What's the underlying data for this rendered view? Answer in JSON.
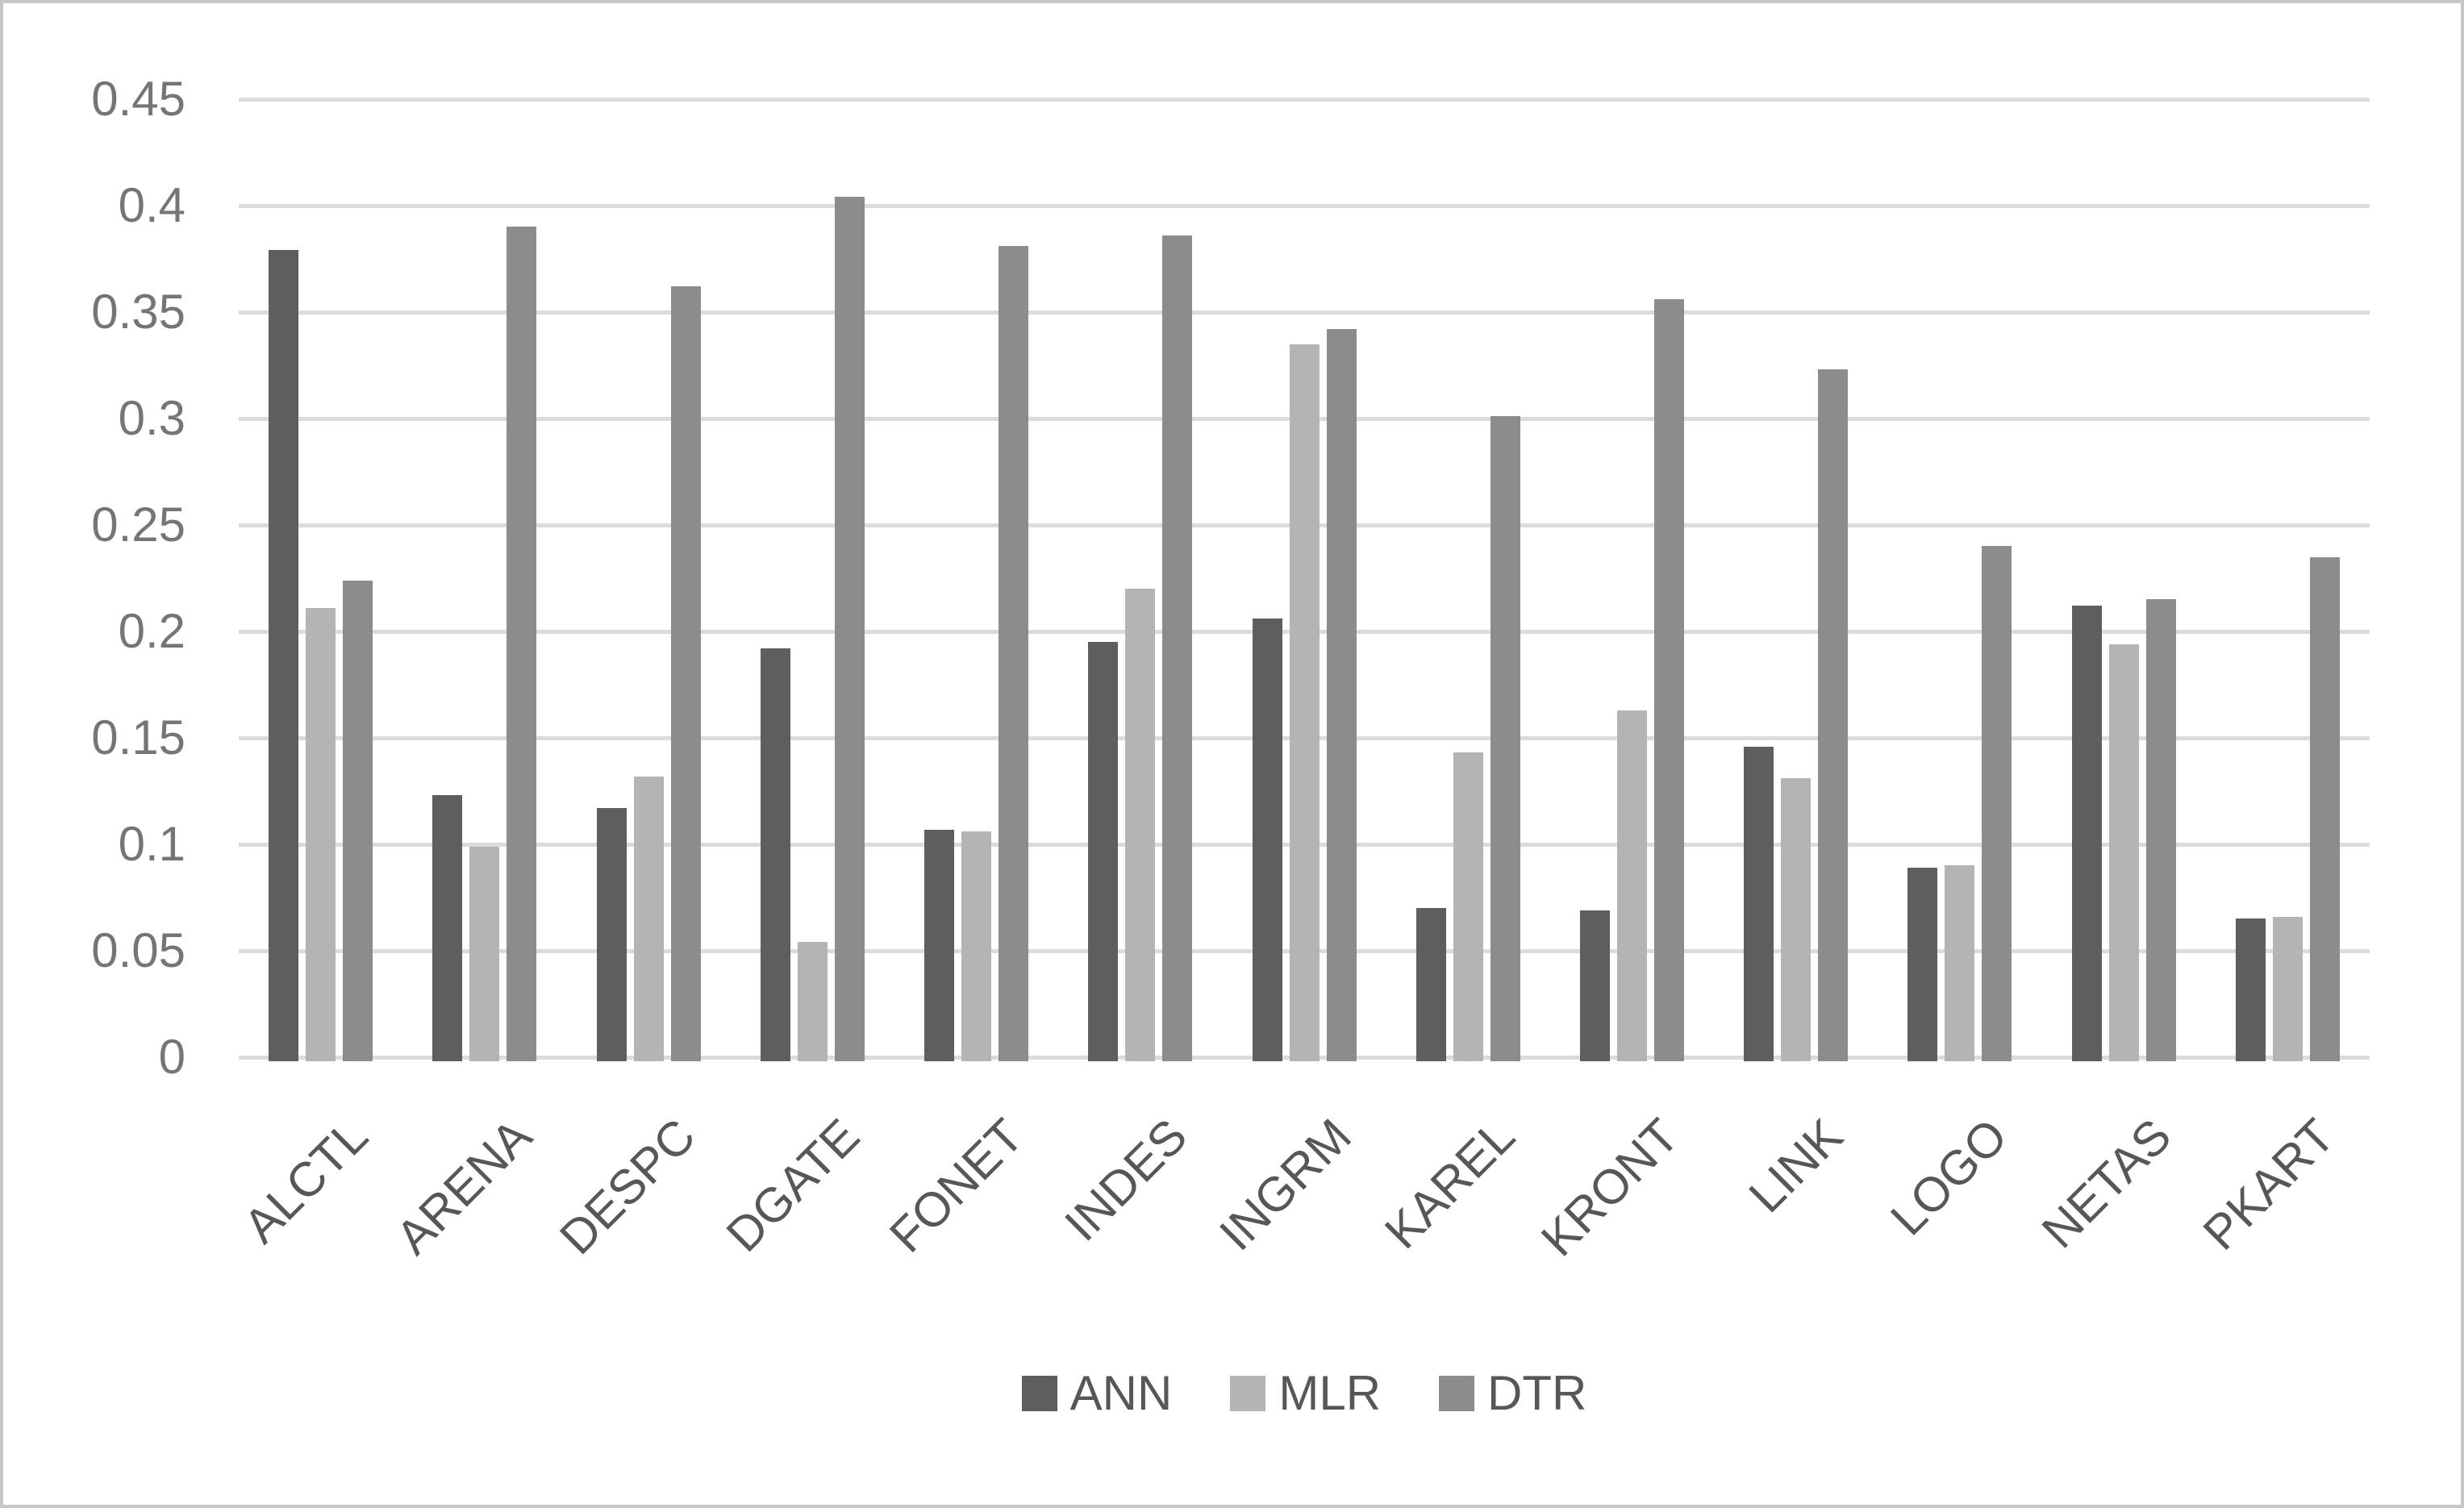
{
  "figure": {
    "background_color": "#ffffff",
    "frame_border_color": "#c6c6c6"
  },
  "chart_data": {
    "type": "bar",
    "title": "",
    "categories": [
      "ALCTL",
      "ARENA",
      "DESPC",
      "DGATE",
      "FONET",
      "INDES",
      "INGRM",
      "KAREL",
      "KRONT",
      "LINK",
      "LOGO",
      "NETAS",
      "PKART"
    ],
    "series": [
      {
        "name": "ANN",
        "color": "#5e5e5e",
        "values": [
          0.379,
          0.123,
          0.117,
          0.192,
          0.107,
          0.195,
          0.206,
          0.07,
          0.069,
          0.146,
          0.089,
          0.212,
          0.065
        ]
      },
      {
        "name": "MLR",
        "color": "#b4b4b4",
        "values": [
          0.211,
          0.099,
          0.132,
          0.054,
          0.106,
          0.22,
          0.335,
          0.143,
          0.163,
          0.131,
          0.09,
          0.194,
          0.066
        ]
      },
      {
        "name": "DTR",
        "color": "#8c8c8c",
        "values": [
          0.224,
          0.39,
          0.362,
          0.404,
          0.381,
          0.386,
          0.342,
          0.301,
          0.356,
          0.323,
          0.24,
          0.215,
          0.235
        ]
      }
    ],
    "xlabel": "",
    "ylabel": "",
    "ylim": [
      0,
      0.45
    ],
    "ytick_values": [
      0.45,
      0.4,
      0.35,
      0.3,
      0.25,
      0.2,
      0.15,
      0.1,
      0.05,
      0
    ],
    "ytick_labels": [
      "0.45",
      "0.4",
      "0.35",
      "0.3",
      "0.25",
      "0.2",
      "0.15",
      "0.1",
      "0.05",
      "0"
    ],
    "grid": "horizontal",
    "gridline_color": "#dbdbdb",
    "tick_label_color": "#757575",
    "category_label_color": "#575757",
    "category_label_rotation_deg": 45,
    "legend_position": "bottom",
    "legend_labels": [
      "ANN",
      "MLR",
      "DTR"
    ]
  }
}
